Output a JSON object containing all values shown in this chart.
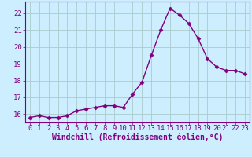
{
  "x": [
    0,
    1,
    2,
    3,
    4,
    5,
    6,
    7,
    8,
    9,
    10,
    11,
    12,
    13,
    14,
    15,
    16,
    17,
    18,
    19,
    20,
    21,
    22,
    23
  ],
  "y": [
    15.8,
    15.9,
    15.8,
    15.8,
    15.9,
    16.2,
    16.3,
    16.4,
    16.5,
    16.5,
    16.4,
    17.2,
    17.9,
    19.5,
    21.0,
    22.3,
    21.9,
    21.4,
    20.5,
    19.3,
    18.8,
    18.6,
    18.6,
    18.4
  ],
  "line_color": "#800080",
  "marker": "D",
  "marker_size": 2.5,
  "linewidth": 1.0,
  "xlabel": "Windchill (Refroidissement éolien,°C)",
  "xlim": [
    -0.5,
    23.5
  ],
  "ylim": [
    15.5,
    22.7
  ],
  "yticks": [
    16,
    17,
    18,
    19,
    20,
    21,
    22
  ],
  "xticks": [
    0,
    1,
    2,
    3,
    4,
    5,
    6,
    7,
    8,
    9,
    10,
    11,
    12,
    13,
    14,
    15,
    16,
    17,
    18,
    19,
    20,
    21,
    22,
    23
  ],
  "bg_color": "#cceeff",
  "grid_color": "#aacccc",
  "tick_color": "#800080",
  "label_color": "#800080",
  "xlabel_fontsize": 7,
  "tick_fontsize": 6.5,
  "spine_color": "#800080"
}
